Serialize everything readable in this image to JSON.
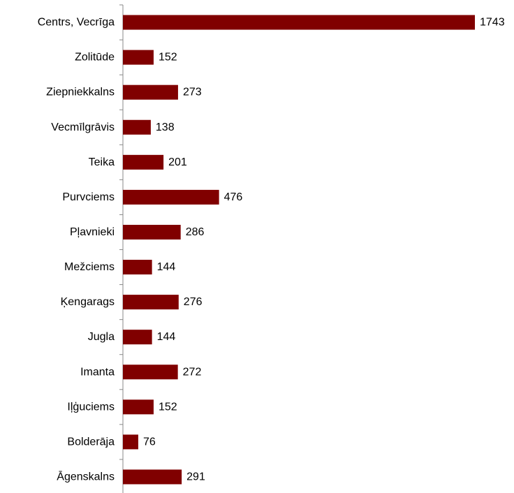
{
  "chart_data": {
    "type": "bar",
    "orientation": "horizontal",
    "categories": [
      "Centrs, Vecrīga",
      "Zolitūde",
      "Ziepniekkalns",
      "Vecmīlgrāvis",
      "Teika",
      "Purvciems",
      "Pļavnieki",
      "Mežciems",
      "Ķengarags",
      "Jugla",
      "Imanta",
      "Iļģuciems",
      "Bolderāja",
      "Āgenskalns"
    ],
    "values": [
      1743,
      152,
      273,
      138,
      201,
      476,
      286,
      144,
      276,
      144,
      272,
      152,
      76,
      291
    ],
    "value_labels": [
      "1743",
      "152",
      "273",
      "138",
      "201",
      "476",
      "286",
      "144",
      "276",
      "144",
      "272",
      "152",
      "76",
      "291"
    ],
    "bar_color": "#800000",
    "axis_color": "#888888",
    "xlim": [
      0,
      1743
    ],
    "grid": false,
    "legend": "none",
    "title": "",
    "xlabel": "",
    "ylabel": ""
  }
}
